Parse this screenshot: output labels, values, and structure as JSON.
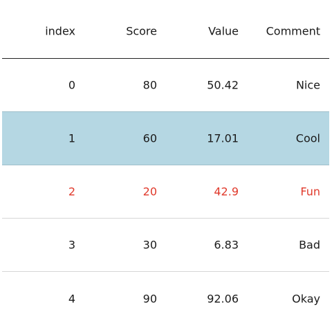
{
  "table": {
    "columns": [
      "index",
      "Score",
      "Value",
      "Comment"
    ],
    "rows": [
      {
        "index": "0",
        "score": "80",
        "value": "50.42",
        "comment": "Nice",
        "style": "normal"
      },
      {
        "index": "1",
        "score": "60",
        "value": "17.01",
        "comment": "Cool",
        "style": "highlight"
      },
      {
        "index": "2",
        "score": "20",
        "value": "42.9",
        "comment": "Fun",
        "style": "alert"
      },
      {
        "index": "3",
        "score": "30",
        "value": "6.83",
        "comment": "Bad",
        "style": "normal"
      },
      {
        "index": "4",
        "score": "90",
        "value": "92.06",
        "comment": "Okay",
        "style": "normal"
      }
    ],
    "colors": {
      "highlight_background": "#b5d7e3",
      "alert_text": "#e0392b",
      "header_rule": "#222222",
      "row_rule": "#d6d6d6"
    }
  }
}
